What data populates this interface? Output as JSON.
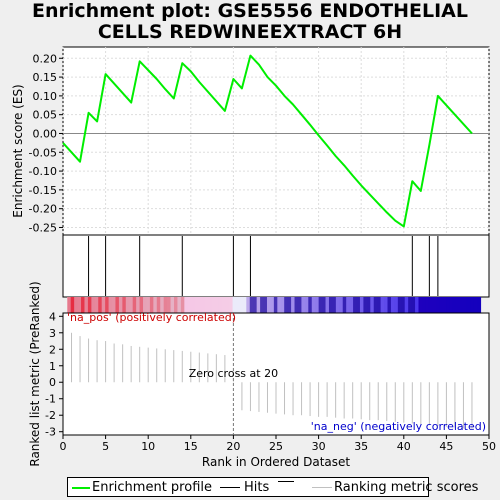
{
  "title": "Enrichment plot: GSE5556 ENDOTHELIAL CELLS REDWINEEXTRACT 6H",
  "chart_data": {
    "type": "line",
    "title": "Enrichment plot: GSE5556 ENDOTHELIAL CELLS REDWINEEXTRACT 6H",
    "xlabel": "Rank in Ordered Dataset",
    "xlim": [
      0,
      50
    ],
    "x_ticks": [
      0,
      5,
      10,
      15,
      20,
      25,
      30,
      35,
      40,
      45,
      50
    ],
    "es_panel": {
      "ylabel": "Enrichment score (ES)",
      "ylim": [
        -0.27,
        0.23
      ],
      "y_ticks": [
        0.2,
        0.15,
        0.1,
        0.05,
        0.0,
        -0.05,
        -0.1,
        -0.15,
        -0.2,
        -0.25
      ],
      "y_tick_labels": [
        "0.20",
        "0.15",
        "0.10",
        "0.05",
        "0.00",
        "-0.05",
        "-0.10",
        "-0.15",
        "-0.20",
        "-0.25"
      ],
      "grid": true,
      "series": [
        {
          "name": "Enrichment profile",
          "color": "#00ee00",
          "x": [
            0,
            2,
            3,
            4,
            5,
            8,
            9,
            11,
            12,
            13,
            14,
            15,
            16,
            19,
            20,
            21,
            22,
            23,
            24,
            25,
            26,
            27,
            28,
            29,
            30,
            31,
            32,
            33,
            34,
            35,
            36,
            37,
            38,
            39,
            40,
            41,
            42,
            43,
            44,
            48
          ],
          "y": [
            -0.025,
            -0.075,
            0.055,
            0.032,
            0.158,
            0.082,
            0.192,
            0.145,
            0.118,
            0.093,
            0.187,
            0.165,
            0.137,
            0.06,
            0.145,
            0.12,
            0.207,
            0.183,
            0.15,
            0.127,
            0.1,
            0.077,
            0.05,
            0.023,
            -0.005,
            -0.032,
            -0.06,
            -0.085,
            -0.112,
            -0.138,
            -0.162,
            -0.186,
            -0.21,
            -0.232,
            -0.247,
            -0.127,
            -0.153,
            -0.03,
            0.1,
            0.0
          ]
        }
      ]
    },
    "hits": {
      "name": "Hits",
      "color": "#000000",
      "x": [
        3,
        5,
        9,
        14,
        20,
        22,
        41,
        43,
        44
      ]
    },
    "ranking_panel": {
      "ylabel": "Ranked list metric (PreRanked)",
      "ylim": [
        -3.2,
        4.2
      ],
      "y_ticks": [
        4,
        3,
        2,
        1,
        0,
        -1,
        -2,
        -3
      ],
      "y_tick_labels": [
        "4",
        "3",
        "2",
        "1",
        "0",
        "-1",
        "-2",
        "-3"
      ],
      "series": [
        {
          "name": "Ranking metric scores",
          "color": "#c0c0c0",
          "x": [
            1,
            2,
            3,
            4,
            5,
            6,
            7,
            8,
            9,
            10,
            11,
            12,
            13,
            14,
            15,
            16,
            17,
            18,
            19,
            20,
            21,
            22,
            23,
            24,
            25,
            26,
            27,
            28,
            29,
            30,
            31,
            32,
            33,
            34,
            35,
            36,
            37,
            38,
            39,
            40,
            41,
            42,
            43,
            44,
            45,
            46,
            47,
            48
          ],
          "values": [
            3.0,
            2.8,
            2.65,
            2.55,
            2.5,
            2.35,
            2.3,
            2.2,
            2.15,
            2.1,
            2.05,
            2.0,
            1.95,
            1.9,
            1.85,
            1.8,
            1.75,
            1.7,
            1.65,
            0.05,
            -1.7,
            -1.75,
            -1.8,
            -1.85,
            -1.9,
            -1.95,
            -2.0,
            -2.0,
            -2.05,
            -2.1,
            -2.1,
            -2.15,
            -2.2,
            -2.2,
            -2.25,
            -2.3,
            -2.3,
            -2.35,
            -2.4,
            -2.45,
            -2.5,
            -2.55,
            -2.6,
            -2.65,
            -2.7,
            -2.75,
            -2.8,
            -2.85
          ]
        }
      ],
      "annotations": [
        {
          "text": "'na_pos' (positively correlated)",
          "color": "#cc0000",
          "at": "top-left"
        },
        {
          "text": "Zero cross at 20",
          "color": "#000000",
          "x": 20
        },
        {
          "text": "'na_neg' (negatively correlated)",
          "color": "#0000cc",
          "at": "bottom-right"
        }
      ],
      "zero_cross": 20
    },
    "colorbar": {
      "from": "red",
      "to": "blue",
      "pivot": 20,
      "xlim": [
        0.5,
        49
      ]
    },
    "legend": {
      "position": "bottom",
      "entries": [
        {
          "name": "Enrichment profile",
          "color": "#00ee00"
        },
        {
          "name": "Hits",
          "color": "#000000"
        },
        {
          "name": "",
          "color": "#000000"
        },
        {
          "name": "Ranking metric scores",
          "color": "#c0c0c0"
        }
      ]
    }
  }
}
